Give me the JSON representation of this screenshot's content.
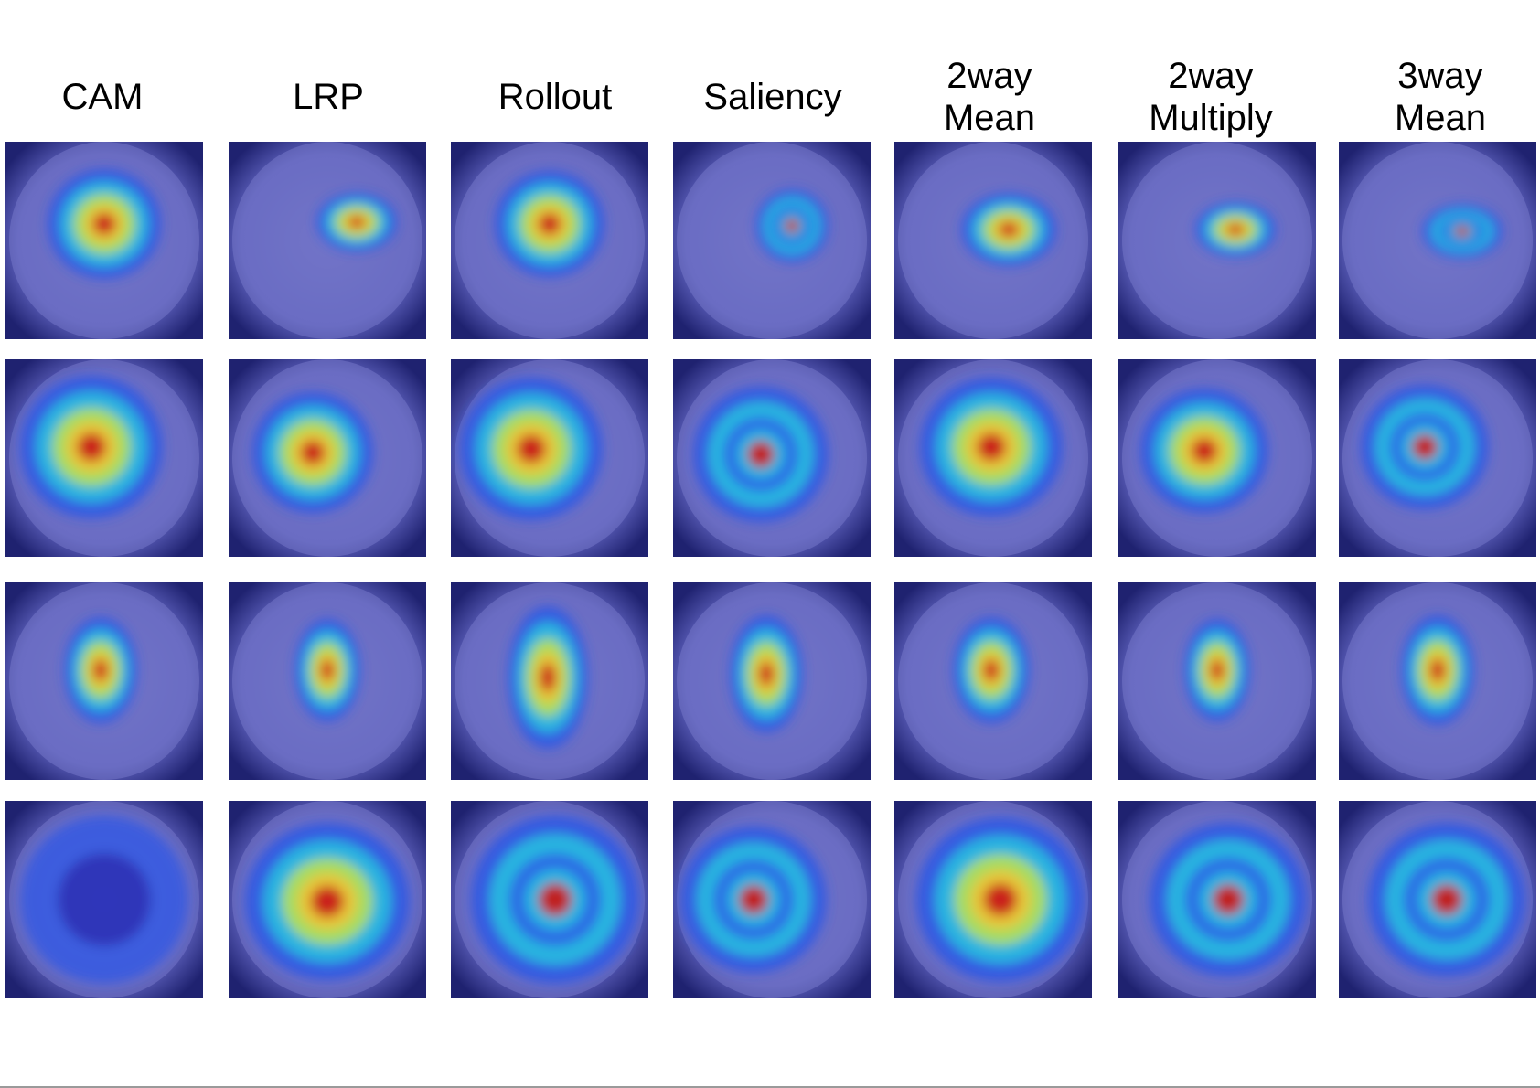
{
  "figure": {
    "columns": [
      {
        "id": "cam",
        "label": "CAM"
      },
      {
        "id": "lrp",
        "label": "LRP"
      },
      {
        "id": "rollout",
        "label": "Rollout"
      },
      {
        "id": "saliency",
        "label": "Saliency"
      },
      {
        "id": "2way-mean",
        "label": "2way\nMean"
      },
      {
        "id": "2way-multiply",
        "label": "2way\nMultiply"
      },
      {
        "id": "3way-mean",
        "label": "3way\nMean"
      }
    ],
    "row_count": 4,
    "content": "dermoscopy images with heatmap overlays",
    "colormap": [
      "#2a2cb0",
      "#2b57e6",
      "#24c4e0",
      "#c8e640",
      "#f2c230",
      "#c81818"
    ]
  }
}
